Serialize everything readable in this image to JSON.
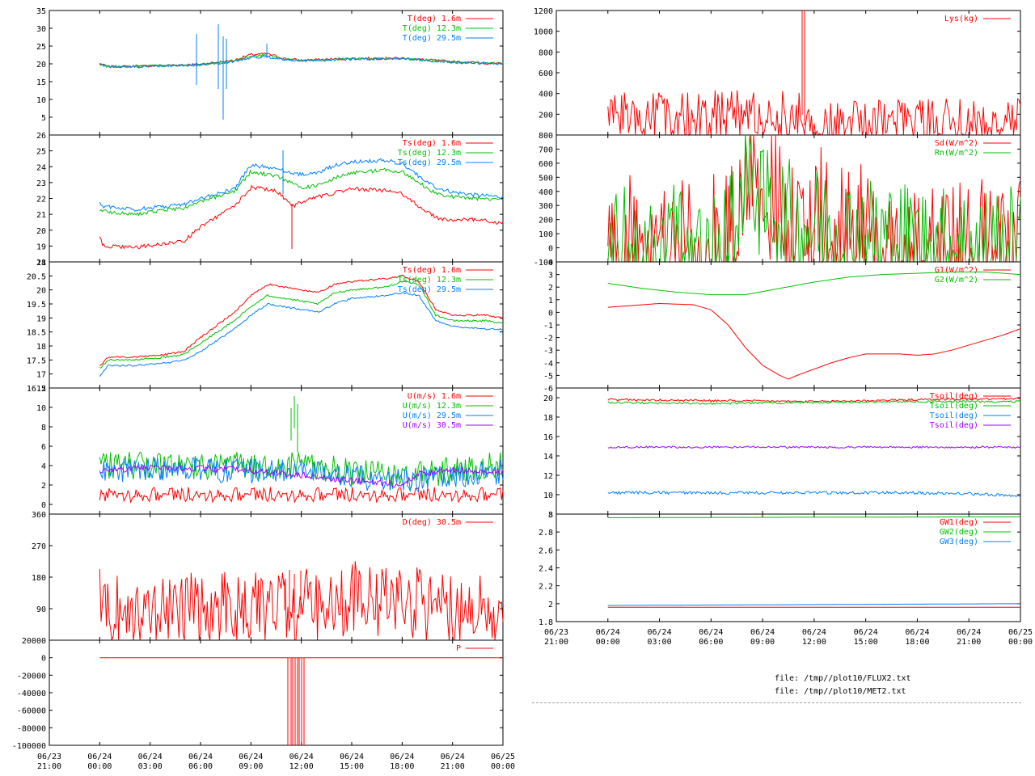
{
  "window": {
    "title": ""
  },
  "files": [
    "file: /tmp//plot10/FLUX2.txt",
    "file: /tmp//plot10/MET2.txt"
  ],
  "colors": {
    "red": "#ff0000",
    "green": "#00c000",
    "blue": "#0080ff",
    "purple": "#a000ff"
  },
  "x_axis": {
    "range_hours": [
      -3,
      24
    ],
    "ticks": [
      {
        "h": -3,
        "date": "06/23",
        "time": "21:00"
      },
      {
        "h": 0,
        "date": "06/24",
        "time": "00:00"
      },
      {
        "h": 3,
        "date": "06/24",
        "time": "03:00"
      },
      {
        "h": 6,
        "date": "06/24",
        "time": "06:00"
      },
      {
        "h": 9,
        "date": "06/24",
        "time": "09:00"
      },
      {
        "h": 12,
        "date": "06/24",
        "time": "12:00"
      },
      {
        "h": 15,
        "date": "06/24",
        "time": "15:00"
      },
      {
        "h": 18,
        "date": "06/24",
        "time": "18:00"
      },
      {
        "h": 21,
        "date": "06/24",
        "time": "21:00"
      },
      {
        "h": 24,
        "date": "06/25",
        "time": "00:00"
      }
    ]
  },
  "chart_data": [
    {
      "type": "line",
      "ylim": [
        0,
        35
      ],
      "yticks": [
        "5",
        "10",
        "15",
        "20",
        "25",
        "30",
        "35"
      ],
      "ytick_values": [
        5,
        10,
        15,
        20,
        25,
        30,
        35
      ],
      "series": [
        {
          "name": "T(deg)  1.6m",
          "color": "red",
          "x": [
            0,
            0.5,
            3,
            6,
            8,
            9,
            10,
            11,
            12,
            15,
            18,
            21,
            24
          ],
          "y": [
            20,
            19.2,
            19.4,
            19.9,
            21,
            22.6,
            22.8,
            21.5,
            21,
            21.5,
            21.6,
            20.6,
            20
          ]
        },
        {
          "name": "T(deg) 12.3m",
          "color": "green",
          "x": [
            0,
            0.5,
            3,
            6,
            8,
            9,
            10,
            11,
            12,
            15,
            18,
            21,
            24
          ],
          "y": [
            20,
            19.2,
            19.4,
            19.8,
            20.8,
            22.2,
            22.4,
            21.3,
            20.9,
            21.4,
            21.5,
            20.5,
            20
          ]
        },
        {
          "name": "T(deg) 29.5m",
          "color": "blue",
          "x": [
            0,
            0.5,
            3,
            6,
            8,
            9,
            10,
            11,
            12,
            15,
            18,
            21,
            24
          ],
          "y": [
            19.9,
            19.1,
            19.3,
            19.7,
            20.6,
            21.8,
            22,
            21.1,
            20.8,
            21.3,
            21.5,
            20.4,
            20
          ]
        }
      ]
    },
    {
      "type": "line",
      "ylim": [
        18,
        26
      ],
      "yticks": [
        "18",
        "19",
        "20",
        "21",
        "22",
        "23",
        "24",
        "25",
        "26"
      ],
      "ytick_values": [
        18,
        19,
        20,
        21,
        22,
        23,
        24,
        25,
        26
      ],
      "series": [
        {
          "name": "Ts(deg)  1.6m",
          "color": "red",
          "x": [
            0,
            0.2,
            2,
            5,
            6,
            8,
            9,
            10.5,
            11.5,
            12,
            13,
            15,
            17,
            18,
            19,
            20,
            21,
            22.5,
            24
          ],
          "y": [
            19.6,
            19,
            18.9,
            19.3,
            20.2,
            21.5,
            22.7,
            22.5,
            21.5,
            21.8,
            22.1,
            22.6,
            22.5,
            22.3,
            21.5,
            20.8,
            20.6,
            20.7,
            20.4
          ]
        },
        {
          "name": "Ts(deg) 12.3m",
          "color": "green",
          "x": [
            0,
            0.2,
            2,
            5,
            6,
            8,
            9,
            10.5,
            11.5,
            12,
            13,
            14,
            15,
            17,
            18,
            19,
            20,
            21,
            22.5,
            24
          ],
          "y": [
            21.3,
            21.2,
            21,
            21.4,
            21.8,
            22.4,
            23.7,
            23.4,
            23,
            22.7,
            22.8,
            23.3,
            23.6,
            23.8,
            23.7,
            23,
            22.3,
            22.1,
            22,
            21.9
          ]
        },
        {
          "name": "Ts(deg) 29.5m",
          "color": "blue",
          "x": [
            0,
            0.2,
            2,
            5,
            6,
            8,
            9,
            10.5,
            11.5,
            12,
            13,
            14,
            15,
            17,
            18,
            19,
            20,
            21,
            22.5,
            24
          ],
          "y": [
            21.7,
            21.5,
            21.3,
            21.6,
            22,
            22.6,
            24.1,
            23.9,
            23.6,
            23.5,
            23.6,
            24.1,
            24.3,
            24.4,
            24.2,
            23.4,
            22.7,
            22.4,
            22.2,
            22.1
          ]
        }
      ]
    },
    {
      "type": "line",
      "ylim": [
        16.5,
        21
      ],
      "yticks": [
        "16.5",
        "17",
        "17.5",
        "18",
        "18.5",
        "19",
        "19.5",
        "20",
        "20.5",
        "21"
      ],
      "ytick_values": [
        16.5,
        17,
        17.5,
        18,
        18.5,
        19,
        19.5,
        20,
        20.5,
        21
      ],
      "series": [
        {
          "name": "Ts(deg)  1.6m",
          "color": "red",
          "x": [
            0,
            0.5,
            2,
            4,
            5,
            6,
            8,
            9,
            10,
            11,
            12,
            13,
            14,
            15,
            17,
            18,
            19,
            20,
            21,
            23,
            24
          ],
          "y": [
            17.3,
            17.6,
            17.6,
            17.7,
            17.8,
            18.3,
            19.2,
            19.8,
            20.2,
            20.1,
            20,
            19.9,
            20.2,
            20.3,
            20.4,
            20.5,
            20.3,
            19.3,
            19.1,
            19.1,
            19
          ]
        },
        {
          "name": "Ts(deg) 12.3m",
          "color": "green",
          "x": [
            0,
            0.5,
            2,
            4,
            5,
            6,
            8,
            9,
            10,
            11,
            12,
            13,
            14,
            15,
            17,
            18,
            19,
            20,
            21,
            23,
            24
          ],
          "y": [
            17.2,
            17.5,
            17.5,
            17.6,
            17.7,
            18.1,
            18.9,
            19.4,
            19.8,
            19.7,
            19.6,
            19.5,
            19.9,
            20,
            20.1,
            20.3,
            20.2,
            19.1,
            18.9,
            18.9,
            18.8
          ]
        },
        {
          "name": "Ts(deg) 29.5m",
          "color": "blue",
          "x": [
            0,
            0.5,
            2,
            4,
            5,
            6,
            8,
            9,
            10,
            11,
            12,
            13,
            14,
            15,
            17,
            18,
            19,
            20,
            21,
            23,
            24
          ],
          "y": [
            16.9,
            17.3,
            17.3,
            17.4,
            17.5,
            17.8,
            18.6,
            19.1,
            19.5,
            19.4,
            19.3,
            19.2,
            19.5,
            19.7,
            19.8,
            19.9,
            19.8,
            18.9,
            18.7,
            18.6,
            18.6
          ]
        }
      ]
    },
    {
      "type": "line",
      "ylim": [
        -1,
        12
      ],
      "yticks": [
        "0",
        "2",
        "4",
        "6",
        "8",
        "10",
        "12"
      ],
      "ytick_values": [
        0,
        2,
        4,
        6,
        8,
        10,
        12
      ],
      "series": [
        {
          "name": "U(m/s)  1.6m",
          "color": "red",
          "x": [
            0,
            6,
            12,
            18,
            24
          ],
          "y": [
            1,
            1,
            1,
            1,
            1
          ]
        },
        {
          "name": "U(m/s) 12.3m",
          "color": "green",
          "x": [
            0,
            6,
            12,
            18,
            24
          ],
          "y": [
            4,
            4,
            4,
            2.8,
            4.2
          ]
        },
        {
          "name": "U(m/s) 29.5m",
          "color": "blue",
          "x": [
            0,
            6,
            12,
            18,
            24
          ],
          "y": [
            3.5,
            3.6,
            3.3,
            2.4,
            3.4
          ]
        },
        {
          "name": "U(m/s) 30.5m",
          "color": "purple",
          "x": [
            0,
            3,
            6,
            9,
            12,
            15,
            18,
            19,
            21,
            24
          ],
          "y": [
            3.5,
            3.8,
            3.7,
            3.5,
            3,
            2.5,
            2,
            3.2,
            3.5,
            3.4
          ]
        }
      ]
    },
    {
      "type": "line",
      "ylim": [
        0,
        360
      ],
      "yticks": [
        "90",
        "180",
        "270",
        "360"
      ],
      "ytick_values": [
        90,
        180,
        270,
        360
      ],
      "series": [
        {
          "name": "D(deg)  30.5m",
          "color": "red",
          "x": [
            0,
            0.5,
            1,
            3,
            6,
            9,
            10,
            11.5,
            12,
            13,
            14,
            15,
            17,
            19,
            19.5,
            21,
            23,
            24
          ],
          "y": [
            100,
            95,
            88,
            85,
            87,
            90,
            92,
            95,
            100,
            100,
            115,
            120,
            110,
            112,
            85,
            83,
            90,
            87
          ]
        }
      ]
    },
    {
      "type": "line",
      "ylim": [
        -100000,
        20000
      ],
      "yticks": [
        "-100000",
        "-80000",
        "-60000",
        "-40000",
        "-20000",
        "0",
        "20000"
      ],
      "ytick_values": [
        -100000,
        -80000,
        -60000,
        -40000,
        -20000,
        0,
        20000
      ],
      "series": [
        {
          "name": "P",
          "color": "red",
          "x": [
            0,
            24
          ],
          "y": [
            0,
            0
          ]
        }
      ]
    },
    {
      "type": "line",
      "ylim": [
        0,
        1200
      ],
      "yticks": [
        "200",
        "400",
        "600",
        "800",
        "1000",
        "1200"
      ],
      "ytick_values": [
        200,
        400,
        600,
        800,
        1000,
        1200
      ],
      "series": [
        {
          "name": "Lys(kg)",
          "color": "red",
          "x": [
            0,
            6,
            11.3,
            11.4,
            24
          ],
          "y": [
            195,
            195,
            190,
            110,
            110
          ]
        }
      ]
    },
    {
      "type": "line",
      "ylim": [
        -100,
        800
      ],
      "yticks": [
        "-100",
        "0",
        "100",
        "200",
        "300",
        "400",
        "500",
        "600",
        "700",
        "800"
      ],
      "ytick_values": [
        -100,
        0,
        100,
        200,
        300,
        400,
        500,
        600,
        700,
        800
      ],
      "series": [
        {
          "name": "Sd(W/m^2)",
          "color": "red",
          "x": [
            0,
            4.5,
            5.5,
            6.5,
            7,
            7.5,
            8,
            8.5,
            9,
            9.5,
            10,
            11,
            12,
            13,
            14,
            15,
            16,
            17,
            18,
            19,
            24
          ],
          "y": [
            0,
            0,
            0,
            30,
            130,
            250,
            520,
            650,
            300,
            400,
            300,
            160,
            180,
            170,
            110,
            90,
            90,
            60,
            30,
            0,
            0
          ]
        },
        {
          "name": "Rn(W/m^2)",
          "color": "green",
          "x": [
            0,
            4.5,
            5.5,
            6.5,
            7,
            7.5,
            8,
            8.5,
            9,
            9.5,
            10,
            11,
            12,
            13,
            14,
            15,
            16,
            17,
            18,
            19,
            24
          ],
          "y": [
            0,
            0,
            0,
            10,
            100,
            200,
            420,
            520,
            250,
            330,
            250,
            130,
            150,
            140,
            90,
            75,
            75,
            50,
            20,
            0,
            0
          ]
        }
      ]
    },
    {
      "type": "line",
      "ylim": [
        -6,
        4
      ],
      "yticks": [
        "-6",
        "-5",
        "-4",
        "-3",
        "-2",
        "-1",
        "0",
        "1",
        "2",
        "3",
        "4"
      ],
      "ytick_values": [
        -6,
        -5,
        -4,
        -3,
        -2,
        -1,
        0,
        1,
        2,
        3,
        4
      ],
      "series": [
        {
          "name": "G1(W/m^2)",
          "color": "red",
          "x": [
            0,
            1,
            3,
            5,
            6,
            7,
            8,
            9,
            10,
            10.5,
            11,
            12,
            13,
            14,
            15,
            17,
            18,
            19,
            20,
            21,
            23,
            24
          ],
          "y": [
            0.4,
            0.5,
            0.7,
            0.6,
            0.2,
            -1,
            -2.8,
            -4.2,
            -5,
            -5.3,
            -5,
            -4.5,
            -4,
            -3.6,
            -3.3,
            -3.3,
            -3.4,
            -3.3,
            -3,
            -2.6,
            -1.8,
            -1.3
          ]
        },
        {
          "name": "G2(W/m^2)",
          "color": "green",
          "x": [
            0,
            2,
            4,
            6,
            8,
            10,
            12,
            14,
            16,
            18,
            20,
            22,
            24
          ],
          "y": [
            2.3,
            1.9,
            1.6,
            1.4,
            1.4,
            1.9,
            2.4,
            2.8,
            3,
            3.1,
            3.2,
            3.2,
            3
          ]
        }
      ]
    },
    {
      "type": "line",
      "ylim": [
        8,
        21
      ],
      "yticks": [
        "8",
        "10",
        "12",
        "14",
        "16",
        "18",
        "20"
      ],
      "ytick_values": [
        8,
        10,
        12,
        14,
        16,
        18,
        20
      ],
      "series": [
        {
          "name": "Tsoil(deg)",
          "color": "red",
          "x": [
            0,
            6,
            12,
            18,
            24
          ],
          "y": [
            19.8,
            19.7,
            19.6,
            19.8,
            19.9
          ]
        },
        {
          "name": "Tsoil(deg)",
          "color": "green",
          "x": [
            0,
            6,
            12,
            18,
            24
          ],
          "y": [
            19.5,
            19.4,
            19.5,
            19.6,
            19.6
          ]
        },
        {
          "name": "Tsoil(deg)",
          "color": "blue",
          "x": [
            0,
            6,
            12,
            18,
            21,
            24
          ],
          "y": [
            10.2,
            10.2,
            10.2,
            10.2,
            10.1,
            9.9
          ]
        },
        {
          "name": "Tsoil(deg)",
          "color": "purple",
          "x": [
            0,
            6,
            12,
            18,
            24
          ],
          "y": [
            14.9,
            14.9,
            14.9,
            14.9,
            14.9
          ]
        }
      ]
    },
    {
      "type": "line",
      "ylim": [
        1.8,
        3
      ],
      "yticks": [
        "1.8",
        "2",
        "2.2",
        "2.4",
        "2.6",
        "2.8",
        "3"
      ],
      "ytick_values": [
        1.8,
        2,
        2.2,
        2.4,
        2.6,
        2.8,
        3
      ],
      "series": [
        {
          "name": "GW1(deg)",
          "color": "red",
          "x": [
            0,
            24
          ],
          "y": [
            1.96,
            1.96
          ]
        },
        {
          "name": "GW2(deg)",
          "color": "green",
          "x": [
            0,
            24
          ],
          "y": [
            2.96,
            2.97
          ]
        },
        {
          "name": "GW3(deg)",
          "color": "blue",
          "x": [
            0,
            24
          ],
          "y": [
            1.98,
            2
          ]
        }
      ]
    }
  ]
}
